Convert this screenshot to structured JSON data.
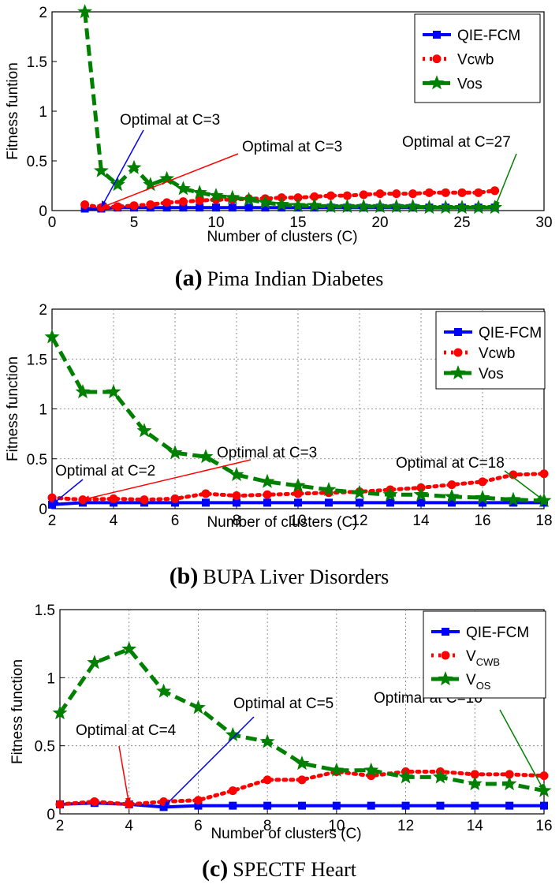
{
  "chart_data": [
    {
      "type": "line",
      "caption_label": "(a)",
      "caption_text": "Pima Indian Diabetes",
      "xlabel": "Number of clusters (C)",
      "ylabel": "Fitness funtion",
      "xlim": [
        0,
        30
      ],
      "ylim": [
        0,
        2
      ],
      "xticks": [
        "0",
        "5",
        "10",
        "15",
        "20",
        "25",
        "30"
      ],
      "xtick_values": [
        0,
        5,
        10,
        15,
        20,
        25,
        30
      ],
      "yticks": [
        "0",
        "0.5",
        "1",
        "1.5",
        "2"
      ],
      "ytick_values": [
        0,
        0.5,
        1,
        1.5,
        2
      ],
      "grid": false,
      "legend_position": "top-right",
      "x": [
        2,
        3,
        4,
        5,
        6,
        7,
        8,
        9,
        10,
        11,
        12,
        13,
        14,
        15,
        16,
        17,
        18,
        19,
        20,
        21,
        22,
        23,
        24,
        25,
        26,
        27
      ],
      "series": [
        {
          "name": "QIE-FCM",
          "sub": "",
          "color": "#0000ff",
          "marker": "square",
          "dash": "solid",
          "values": [
            0.02,
            0.02,
            0.03,
            0.03,
            0.03,
            0.03,
            0.03,
            0.03,
            0.03,
            0.03,
            0.03,
            0.03,
            0.03,
            0.03,
            0.03,
            0.03,
            0.03,
            0.03,
            0.03,
            0.03,
            0.03,
            0.03,
            0.03,
            0.03,
            0.03,
            0.03
          ]
        },
        {
          "name": "Vcwb",
          "sub": "",
          "color": "#ff0000",
          "marker": "circle",
          "dash": "dotted",
          "values": [
            0.06,
            0.03,
            0.04,
            0.05,
            0.06,
            0.08,
            0.09,
            0.1,
            0.11,
            0.11,
            0.12,
            0.12,
            0.13,
            0.13,
            0.14,
            0.15,
            0.15,
            0.16,
            0.17,
            0.17,
            0.17,
            0.18,
            0.18,
            0.18,
            0.18,
            0.2
          ]
        },
        {
          "name": "Vos",
          "sub": "",
          "color": "#008000",
          "marker": "star",
          "dash": "dashed",
          "values": [
            2.0,
            0.4,
            0.26,
            0.43,
            0.26,
            0.32,
            0.22,
            0.18,
            0.15,
            0.13,
            0.11,
            0.08,
            0.06,
            0.05,
            0.05,
            0.04,
            0.04,
            0.04,
            0.04,
            0.04,
            0.04,
            0.03,
            0.03,
            0.03,
            0.03,
            0.03
          ]
        }
      ],
      "annotations": [
        {
          "text": "Optimal at C=3",
          "color": "#0000ff",
          "x": 3,
          "y": 0.03
        },
        {
          "text": "Optimal at C=3",
          "color": "#ff0000",
          "x": 3,
          "y": 0.03
        },
        {
          "text": "Optimal at C=27",
          "color": "#008000",
          "x": 27,
          "y": 0.03
        }
      ]
    },
    {
      "type": "line",
      "caption_label": "(b)",
      "caption_text": "BUPA Liver Disorders",
      "xlabel": "Number of clusters (C)",
      "ylabel": "Fitness function",
      "xlim": [
        2,
        18
      ],
      "ylim": [
        0,
        2
      ],
      "xticks": [
        "2",
        "4",
        "6",
        "8",
        "10",
        "12",
        "14",
        "16",
        "18"
      ],
      "xtick_values": [
        2,
        4,
        6,
        8,
        10,
        12,
        14,
        16,
        18
      ],
      "yticks": [
        "0",
        "0.5",
        "1",
        "1.5",
        "2"
      ],
      "ytick_values": [
        0,
        0.5,
        1,
        1.5,
        2
      ],
      "grid": true,
      "legend_position": "top-right",
      "x": [
        2,
        3,
        4,
        5,
        6,
        7,
        8,
        9,
        10,
        11,
        12,
        13,
        14,
        15,
        16,
        17,
        18
      ],
      "series": [
        {
          "name": "QIE-FCM",
          "sub": "",
          "color": "#0000ff",
          "marker": "square",
          "dash": "solid",
          "values": [
            0.04,
            0.06,
            0.06,
            0.06,
            0.06,
            0.06,
            0.06,
            0.06,
            0.06,
            0.06,
            0.06,
            0.06,
            0.06,
            0.06,
            0.06,
            0.06,
            0.06
          ]
        },
        {
          "name": "Vcwb",
          "sub": "",
          "color": "#ff0000",
          "marker": "circle",
          "dash": "dotted",
          "values": [
            0.11,
            0.09,
            0.1,
            0.09,
            0.1,
            0.15,
            0.13,
            0.14,
            0.15,
            0.16,
            0.17,
            0.19,
            0.21,
            0.24,
            0.27,
            0.34,
            0.35
          ]
        },
        {
          "name": "Vos",
          "sub": "",
          "color": "#008000",
          "marker": "star",
          "dash": "dashed",
          "values": [
            1.72,
            1.17,
            1.17,
            0.78,
            0.56,
            0.52,
            0.34,
            0.27,
            0.23,
            0.19,
            0.16,
            0.14,
            0.14,
            0.12,
            0.11,
            0.09,
            0.08
          ]
        }
      ],
      "annotations": [
        {
          "text": "Optimal at C=2",
          "color": "#0000ff",
          "x": 2,
          "y": 0.04
        },
        {
          "text": "Optimal at C=3",
          "color": "#ff0000",
          "x": 3,
          "y": 0.09
        },
        {
          "text": "Optimal at C=18",
          "color": "#008000",
          "x": 18,
          "y": 0.08
        }
      ]
    },
    {
      "type": "line",
      "caption_label": "(c)",
      "caption_text": "SPECTF Heart",
      "xlabel": "Number of clusters (C)",
      "ylabel": "Fitness function",
      "xlim": [
        2,
        16
      ],
      "ylim": [
        0,
        1.5
      ],
      "xticks": [
        "2",
        "4",
        "6",
        "8",
        "10",
        "12",
        "14",
        "16"
      ],
      "xtick_values": [
        2,
        4,
        6,
        8,
        10,
        12,
        14,
        16
      ],
      "yticks": [
        "0",
        "0.5",
        "1",
        "1.5"
      ],
      "ytick_values": [
        0,
        0.5,
        1,
        1.5
      ],
      "grid": true,
      "legend_position": "top-right",
      "x": [
        2,
        3,
        4,
        5,
        6,
        7,
        8,
        9,
        10,
        11,
        12,
        13,
        14,
        15,
        16
      ],
      "series": [
        {
          "name": "QIE-FCM",
          "sub": "",
          "color": "#0000ff",
          "marker": "square",
          "dash": "solid",
          "values": [
            0.07,
            0.08,
            0.07,
            0.05,
            0.06,
            0.06,
            0.06,
            0.06,
            0.06,
            0.06,
            0.06,
            0.06,
            0.06,
            0.06,
            0.06
          ]
        },
        {
          "name": "V",
          "sub": "CWB",
          "color": "#ff0000",
          "marker": "circle",
          "dash": "dotted",
          "values": [
            0.07,
            0.09,
            0.07,
            0.09,
            0.1,
            0.17,
            0.25,
            0.25,
            0.31,
            0.28,
            0.31,
            0.31,
            0.29,
            0.29,
            0.28
          ]
        },
        {
          "name": "V",
          "sub": "OS",
          "color": "#008000",
          "marker": "star",
          "dash": "dashed",
          "values": [
            0.74,
            1.11,
            1.21,
            0.9,
            0.78,
            0.58,
            0.53,
            0.37,
            0.32,
            0.32,
            0.27,
            0.27,
            0.22,
            0.22,
            0.17
          ]
        }
      ],
      "annotations": [
        {
          "text": "Optimal at C=4",
          "color": "#ff0000",
          "x": 4,
          "y": 0.07
        },
        {
          "text": "Optimal at C=5",
          "color": "#0000ff",
          "x": 5,
          "y": 0.05
        },
        {
          "text": "Optimal at C=16",
          "color": "#008000",
          "x": 16,
          "y": 0.17
        }
      ]
    }
  ]
}
